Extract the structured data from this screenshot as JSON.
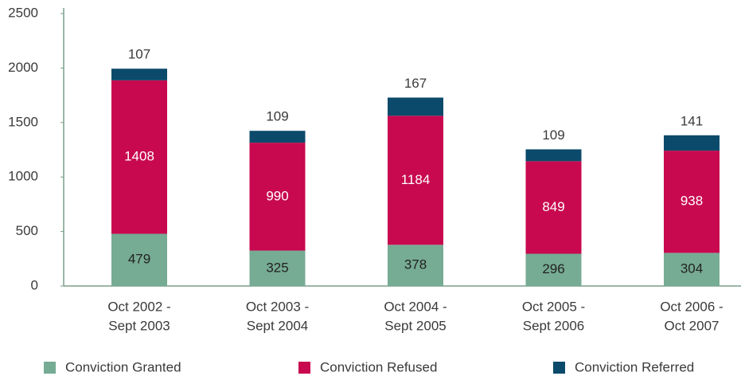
{
  "chart_data": {
    "type": "stacked_bar",
    "categories": [
      [
        "Oct 2002 -",
        "Sept 2003"
      ],
      [
        "Oct 2003 -",
        "Sept 2004"
      ],
      [
        "Oct 2004 -",
        "Sept 2005"
      ],
      [
        "Oct 2005 -",
        "Sept 2006"
      ],
      [
        "Oct 2006 -",
        "Oct 2007"
      ]
    ],
    "series": [
      {
        "name": "Conviction Granted",
        "color": "#76ab94",
        "values": [
          479,
          325,
          378,
          296,
          304
        ]
      },
      {
        "name": "Conviction Refused",
        "color": "#c8094f",
        "values": [
          1408,
          990,
          1184,
          849,
          938
        ]
      },
      {
        "name": "Conviction Referred",
        "color": "#0c4a6b",
        "values": [
          107,
          109,
          167,
          109,
          141
        ]
      }
    ],
    "ylim": [
      0,
      2500
    ],
    "yticks": [
      0,
      500,
      1000,
      1500,
      2000,
      2500
    ],
    "grid": false,
    "legend": "bottom"
  }
}
